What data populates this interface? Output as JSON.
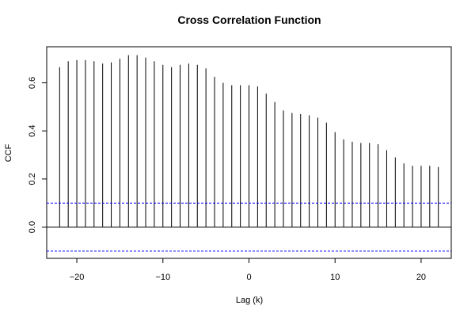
{
  "chart_data": {
    "type": "bar",
    "title": "Cross Correlation Function",
    "xlabel": "Lag (k)",
    "ylabel": "CCF",
    "xlim": [
      -23.5,
      23.5
    ],
    "ylim": [
      -0.13,
      0.75
    ],
    "x_ticks": [
      -20,
      -10,
      0,
      10,
      20
    ],
    "x_tick_labels": [
      "−20",
      "−10",
      "0",
      "10",
      "20"
    ],
    "y_ticks": [
      0.0,
      0.2,
      0.4,
      0.6
    ],
    "y_tick_labels": [
      "0.0",
      "0.2",
      "0.4",
      "0.6"
    ],
    "confidence_bounds": [
      0.1,
      -0.1
    ],
    "confidence_color": "#0000ff",
    "bar_color": "#000000",
    "series": [
      {
        "lags": [
          -22,
          -21,
          -20,
          -19,
          -18,
          -17,
          -16,
          -15,
          -14,
          -13,
          -12,
          -11,
          -10,
          -9,
          -8,
          -7,
          -6,
          -5,
          -4,
          -3,
          -2,
          -1,
          0,
          1,
          2,
          3,
          4,
          5,
          6,
          7,
          8,
          9,
          10,
          11,
          12,
          13,
          14,
          15,
          16,
          17,
          18,
          19,
          20,
          21,
          22
        ],
        "values": [
          0.665,
          0.69,
          0.695,
          0.695,
          0.69,
          0.68,
          0.685,
          0.7,
          0.715,
          0.715,
          0.705,
          0.69,
          0.675,
          0.665,
          0.675,
          0.68,
          0.675,
          0.66,
          0.625,
          0.6,
          0.59,
          0.59,
          0.59,
          0.585,
          0.555,
          0.52,
          0.485,
          0.475,
          0.47,
          0.465,
          0.455,
          0.435,
          0.395,
          0.365,
          0.355,
          0.35,
          0.35,
          0.345,
          0.32,
          0.29,
          0.265,
          0.255,
          0.255,
          0.255,
          0.25
        ]
      }
    ]
  }
}
